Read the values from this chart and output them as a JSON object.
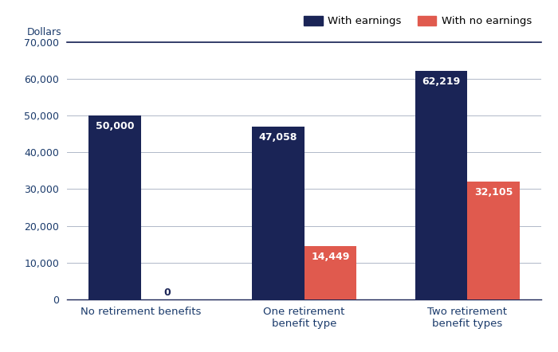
{
  "categories": [
    "No retirement benefits",
    "One retirement\nbenefit type",
    "Two retirement\nbenefit types"
  ],
  "with_earnings": [
    50000,
    47058,
    62219
  ],
  "with_no_earnings": [
    0,
    14449,
    32105
  ],
  "bar_color_earnings": "#1a2456",
  "bar_color_no_earnings": "#e05a4e",
  "ylabel": "Dollars",
  "ylim": [
    0,
    70000
  ],
  "yticks": [
    0,
    10000,
    20000,
    30000,
    40000,
    50000,
    60000,
    70000
  ],
  "legend_earnings": "With earnings",
  "legend_no_earnings": "With no earnings",
  "label_color_earnings": "#ffffff",
  "label_color_no_earnings": "#ffffff",
  "label_color_zero": "#1a2456",
  "tick_label_color": "#1a3a6b",
  "bar_width": 0.32
}
